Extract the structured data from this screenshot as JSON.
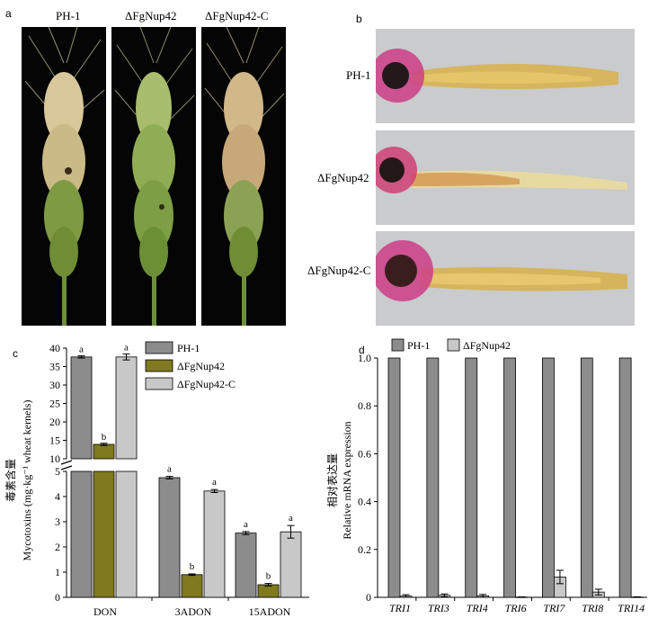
{
  "panels": {
    "a": {
      "letter": "a",
      "labels": [
        "PH-1",
        "ΔFgNup42",
        "ΔFgNup42-C"
      ]
    },
    "b": {
      "letter": "b",
      "labels": [
        "PH-1",
        "ΔFgNup42",
        "ΔFgNup42-C"
      ]
    },
    "c": {
      "letter": "c"
    },
    "d": {
      "letter": "d"
    }
  },
  "colors": {
    "ph1": "#8c8c8c",
    "mutant": "#7f7a1e",
    "complement": "#c8c8c8",
    "photo_bg_a": "#050505",
    "photo_bg_b": "#c9cbcd"
  },
  "chart_data": [
    {
      "type": "bar",
      "panel": "c",
      "ylabel_cn": "毒素含量",
      "ylabel": "Mycotoxins (mg·kg⁻¹ wheat kernels)",
      "categories": [
        "DON",
        "3ADON",
        "15ADON"
      ],
      "series": [
        {
          "name": "PH-1",
          "values": [
            37.6,
            4.75,
            2.55
          ],
          "errors": [
            0.3,
            0.05,
            0.06
          ],
          "letters": [
            "a",
            "a",
            "a"
          ]
        },
        {
          "name": "ΔFgNup42",
          "values": [
            13.9,
            0.9,
            0.5
          ],
          "errors": [
            0.3,
            0.03,
            0.05
          ],
          "letters": [
            "b",
            "b",
            "b"
          ]
        },
        {
          "name": "ΔFgNup42-C",
          "values": [
            37.6,
            4.22,
            2.6
          ],
          "errors": [
            0.8,
            0.06,
            0.25
          ],
          "letters": [
            "a",
            "a",
            "a"
          ]
        }
      ],
      "axis_break": {
        "lower_ylim": [
          0,
          5
        ],
        "upper_ylim": [
          10,
          40
        ]
      },
      "lower_ticks": [
        "0",
        "1",
        "2",
        "3",
        "4",
        "5"
      ],
      "upper_ticks": [
        "10",
        "15",
        "20",
        "25",
        "30",
        "35",
        "40"
      ],
      "legend": [
        "PH-1",
        "ΔFgNup42",
        "ΔFgNup42-C"
      ],
      "legend_position": "top-right"
    },
    {
      "type": "bar",
      "panel": "d",
      "ylabel_cn": "相对表达量",
      "ylabel": "Relative mRNA expression",
      "categories": [
        "TRI1",
        "TRI3",
        "TRI4",
        "TRI6",
        "TRI7",
        "TRI8",
        "TRI14"
      ],
      "series": [
        {
          "name": "PH-1",
          "values": [
            1,
            1,
            1,
            1,
            1,
            1,
            1
          ]
        },
        {
          "name": "ΔFgNup42",
          "values": [
            0.005,
            0.008,
            0.006,
            0.001,
            0.085,
            0.022,
            0.001
          ],
          "errors": [
            0.006,
            0.006,
            0.006,
            0.001,
            0.028,
            0.012,
            0.001
          ]
        }
      ],
      "ylim": [
        0,
        1.0
      ],
      "yticks": [
        "0",
        "0.2",
        "0.4",
        "0.6",
        "0.8",
        "1.0"
      ],
      "legend": [
        "PH-1",
        "ΔFgNup42"
      ],
      "legend_position": "top-left"
    }
  ]
}
